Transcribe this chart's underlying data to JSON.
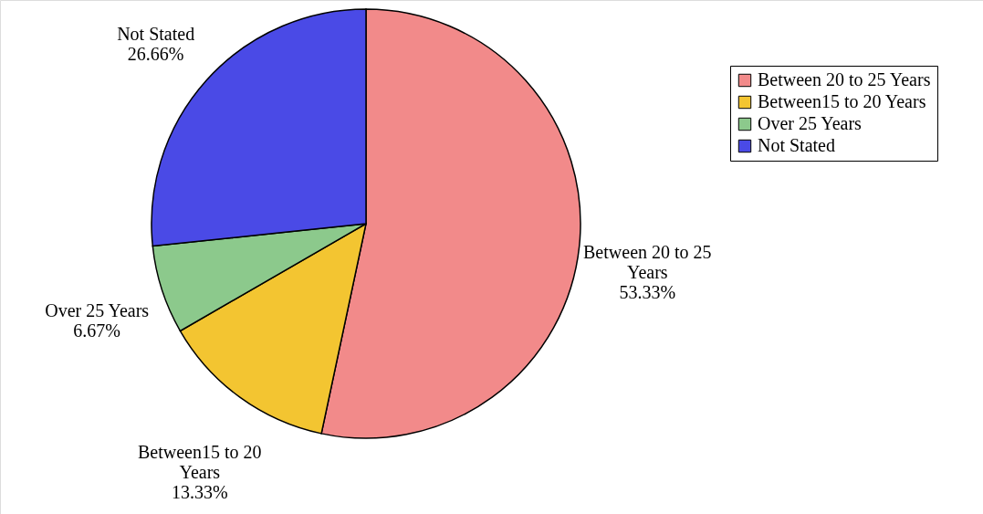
{
  "chart_data": {
    "type": "pie",
    "categories": [
      "Between 20 to 25 Years",
      "Between15 to 20 Years",
      "Over 25 Years",
      "Not Stated"
    ],
    "values": [
      53.33,
      13.33,
      6.67,
      26.66
    ],
    "colors": [
      "#f28a8a",
      "#f3c531",
      "#8cc98c",
      "#4a4ae6"
    ],
    "value_labels": [
      "53.33%",
      "13.33%",
      "6.67%",
      "26.66%"
    ],
    "legend": "top right"
  }
}
